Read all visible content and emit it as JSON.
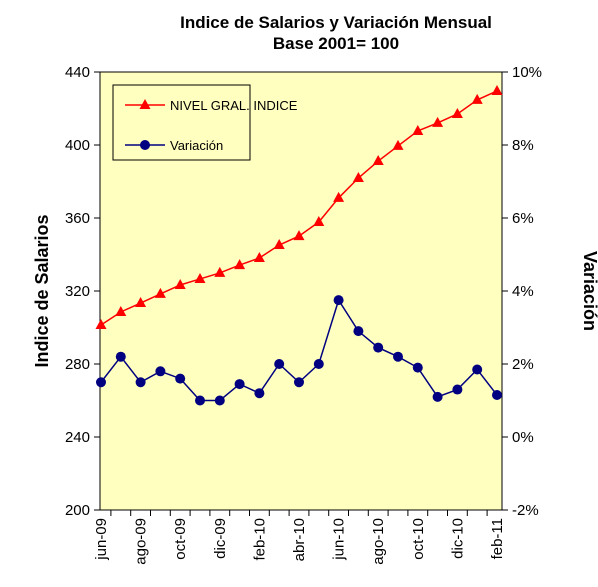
{
  "chart_data": {
    "type": "line",
    "title": "Indice de Salarios y Variación Mensual",
    "subtitle": "Base 2001= 100",
    "y_label": "Indice de Salarios",
    "y2_label": "Variación",
    "categories": [
      "jun-09",
      null,
      "ago-09",
      null,
      "oct-09",
      null,
      "dic-09",
      null,
      "feb-10",
      null,
      "abr-10",
      null,
      "jun-10",
      null,
      "ago-10",
      null,
      "oct-10",
      null,
      "dic-10",
      null,
      "feb-11"
    ],
    "series": [
      {
        "name": "NIVEL GRAL. INDICE",
        "color": "#ff0000",
        "marker": "triangle",
        "values": [
          301.4,
          308.5,
          313.4,
          318.4,
          323.3,
          326.6,
          329.9,
          334.2,
          338.1,
          345.2,
          350.1,
          357.8,
          371,
          381.9,
          391.2,
          399.5,
          407.7,
          412.1,
          417,
          424.7,
          429.6
        ]
      },
      {
        "name": "Variación",
        "color": "#000080",
        "marker": "circle",
        "axis": "y2",
        "values": [
          1.5,
          2.2,
          1.5,
          1.8,
          1.6,
          1.0,
          1.0,
          1.45,
          1.2,
          2.0,
          1.5,
          2.0,
          3.75,
          2.9,
          2.45,
          2.2,
          1.9,
          1.1,
          1.3,
          1.85,
          1.15
        ]
      }
    ],
    "ylim": [
      200,
      440
    ],
    "yticks": [
      200,
      240,
      280,
      320,
      360,
      400,
      440
    ],
    "y2lim": [
      -2,
      10
    ],
    "y2ticks": [
      {
        "value": -2,
        "label": "-2%"
      },
      {
        "value": 0,
        "label": "0%"
      },
      {
        "value": 2,
        "label": "2%"
      },
      {
        "value": 4,
        "label": "4%"
      },
      {
        "value": 6,
        "label": "6%"
      },
      {
        "value": 8,
        "label": "8%"
      },
      {
        "value": 10,
        "label": "10%"
      }
    ],
    "grid": false,
    "legend": "top-left",
    "background": "#ffffc0"
  }
}
